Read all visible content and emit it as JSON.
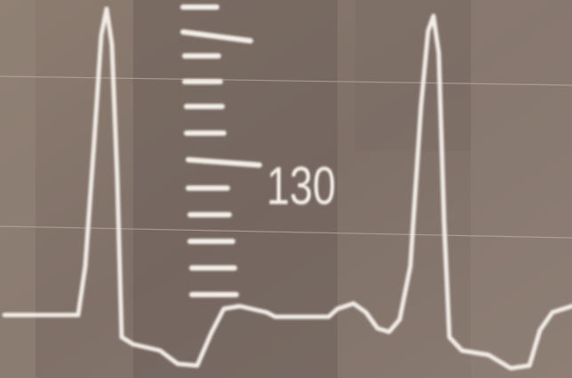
{
  "scale_label": "130"
}
